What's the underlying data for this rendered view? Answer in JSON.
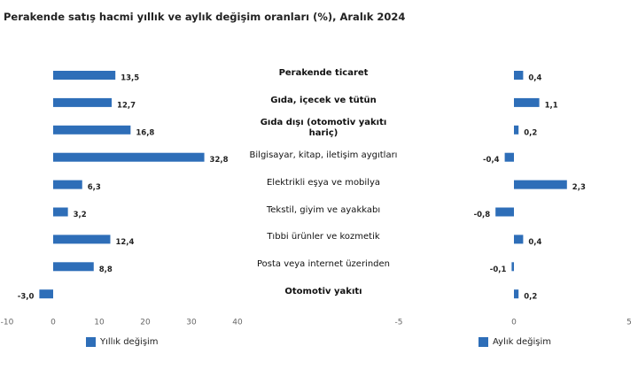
{
  "title": "Perakende satış hacmi yıllık ve aylık değişim oranları (%), Aralık 2024",
  "chart_data": [
    {
      "type": "barh",
      "categories": [
        "Perakende ticaret",
        "Gıda, içecek ve tütün",
        "Gıda dışı (otomotiv yakıtı hariç)",
        "Bilgisayar, kitap, iletişim aygıtları",
        "Elektrikli eşya ve mobilya",
        "Tekstil, giyim ve ayakkabı",
        "Tıbbi ürünler ve kozmetik",
        "Posta veya internet üzerinden",
        "Otomotiv yakıtı"
      ],
      "series": [
        {
          "name": "Yıllık değişim",
          "color": "#2e6eb8",
          "values": [
            13.5,
            12.7,
            16.8,
            32.8,
            6.3,
            3.2,
            12.4,
            8.8,
            -3.0
          ],
          "value_labels": [
            "13,5",
            "12,7",
            "16,8",
            "32,8",
            "6,3",
            "3,2",
            "12,4",
            "8,8",
            "-3,0"
          ]
        }
      ],
      "xlim": [
        -10,
        40
      ],
      "xticks": [
        -10,
        0,
        10,
        20,
        30,
        40
      ]
    },
    {
      "type": "barh",
      "series": [
        {
          "name": "Aylık değişim",
          "color": "#2e6eb8",
          "values": [
            0.4,
            1.1,
            0.2,
            -0.4,
            2.3,
            -0.8,
            0.4,
            -0.1,
            0.2
          ],
          "value_labels": [
            "0,4",
            "1,1",
            "0,2",
            "-0,4",
            "2,3",
            "-0,8",
            "0,4",
            "-0,1",
            "0,2"
          ]
        }
      ],
      "xlim": [
        -5,
        5
      ],
      "xticks": [
        -5,
        0,
        5
      ]
    }
  ]
}
